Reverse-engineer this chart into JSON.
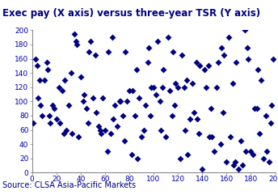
{
  "title": "Exec pay (X axis) versus three-year TSR (Y axis)",
  "source": "Source: CLSA Asia-Pacific Markets",
  "xlim": [
    0,
    200
  ],
  "ylim": [
    0,
    200
  ],
  "xticks": [
    0,
    20,
    40,
    60,
    80,
    100,
    120,
    140,
    160,
    180,
    200
  ],
  "yticks": [
    0,
    20,
    40,
    60,
    80,
    100,
    120,
    140,
    160,
    180,
    200
  ],
  "marker_color": "#000080",
  "marker": "D",
  "marker_size": 16,
  "title_bg_color": "#b8cce4",
  "title_fontsize": 8.5,
  "source_fontsize": 7,
  "tick_fontsize": 6.5,
  "tick_color": "#0000aa",
  "x_data": [
    1,
    3,
    5,
    7,
    10,
    12,
    15,
    18,
    20,
    22,
    25,
    27,
    30,
    32,
    35,
    38,
    40,
    42,
    45,
    48,
    50,
    52,
    55,
    58,
    60,
    62,
    65,
    68,
    70,
    72,
    75,
    78,
    80,
    82,
    85,
    88,
    90,
    92,
    95,
    98,
    100,
    102,
    105,
    108,
    110,
    112,
    115,
    118,
    120,
    122,
    125,
    128,
    130,
    132,
    135,
    138,
    140,
    142,
    145,
    148,
    150,
    152,
    155,
    158,
    160,
    162,
    165,
    168,
    170,
    172,
    175,
    178,
    180,
    182,
    185,
    188,
    190,
    192,
    195,
    198,
    4,
    8,
    13,
    17,
    23,
    28,
    33,
    37,
    43,
    47,
    53,
    57,
    63,
    67,
    73,
    77,
    83,
    87,
    93,
    97,
    103,
    107,
    113,
    117,
    123,
    127,
    133,
    137,
    143,
    147,
    153,
    157,
    163,
    167,
    173,
    177,
    183,
    187,
    193,
    197,
    6,
    14,
    26,
    36,
    46,
    56,
    66,
    76,
    86,
    96,
    106,
    116,
    126,
    136,
    146,
    156,
    166,
    176,
    186,
    196
  ],
  "y_data": [
    70,
    160,
    105,
    95,
    130,
    155,
    70,
    90,
    75,
    120,
    115,
    130,
    95,
    140,
    195,
    50,
    135,
    100,
    90,
    185,
    105,
    165,
    65,
    105,
    60,
    30,
    55,
    95,
    65,
    100,
    80,
    100,
    115,
    25,
    80,
    105,
    50,
    60,
    155,
    120,
    120,
    110,
    100,
    145,
    50,
    190,
    80,
    125,
    120,
    20,
    120,
    25,
    75,
    125,
    155,
    150,
    5,
    145,
    150,
    50,
    30,
    120,
    40,
    165,
    15,
    190,
    125,
    155,
    5,
    45,
    200,
    160,
    30,
    25,
    90,
    130,
    20,
    80,
    15,
    160,
    150,
    80,
    145,
    95,
    70,
    60,
    55,
    180,
    110,
    170,
    85,
    55,
    170,
    75,
    100,
    170,
    115,
    20,
    95,
    80,
    185,
    120,
    115,
    95,
    165,
    130,
    85,
    55,
    120,
    90,
    155,
    85,
    50,
    15,
    10,
    175,
    90,
    55,
    30,
    95,
    130,
    80,
    55,
    185,
    70,
    60,
    190,
    45,
    145,
    175,
    60,
    170,
    60,
    75,
    50,
    175,
    10,
    30,
    145,
    70
  ]
}
